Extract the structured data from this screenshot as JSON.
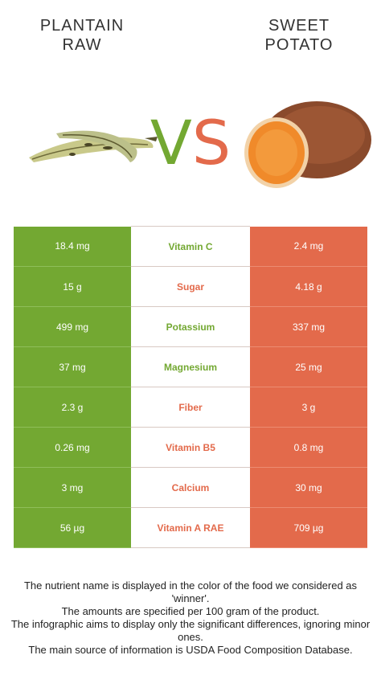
{
  "foods": {
    "left": {
      "title": "PLANTAIN\nRAW",
      "color": "#73a832"
    },
    "right": {
      "title": "SWEET\nPOTATO",
      "color": "#e36a4b"
    }
  },
  "vs": {
    "v": "V",
    "s": "S"
  },
  "rows": [
    {
      "nutrient": "Vitamin C",
      "left": "18.4 mg",
      "right": "2.4 mg",
      "winner": "left"
    },
    {
      "nutrient": "Sugar",
      "left": "15 g",
      "right": "4.18 g",
      "winner": "right"
    },
    {
      "nutrient": "Potassium",
      "left": "499 mg",
      "right": "337 mg",
      "winner": "left"
    },
    {
      "nutrient": "Magnesium",
      "left": "37 mg",
      "right": "25 mg",
      "winner": "left"
    },
    {
      "nutrient": "Fiber",
      "left": "2.3 g",
      "right": "3 g",
      "winner": "right"
    },
    {
      "nutrient": "Vitamin B5",
      "left": "0.26 mg",
      "right": "0.8 mg",
      "winner": "right"
    },
    {
      "nutrient": "Calcium",
      "left": "3 mg",
      "right": "30 mg",
      "winner": "right"
    },
    {
      "nutrient": "Vitamin A RAE",
      "left": "56 µg",
      "right": "709 µg",
      "winner": "right"
    }
  ],
  "footnote": [
    "The nutrient name is displayed in the color of the food we considered as 'winner'.",
    "The amounts are specified per 100 gram of the product.",
    "The infographic aims to display only the significant differences, ignoring minor ones.",
    "The main source of information is USDA Food Composition Database."
  ]
}
